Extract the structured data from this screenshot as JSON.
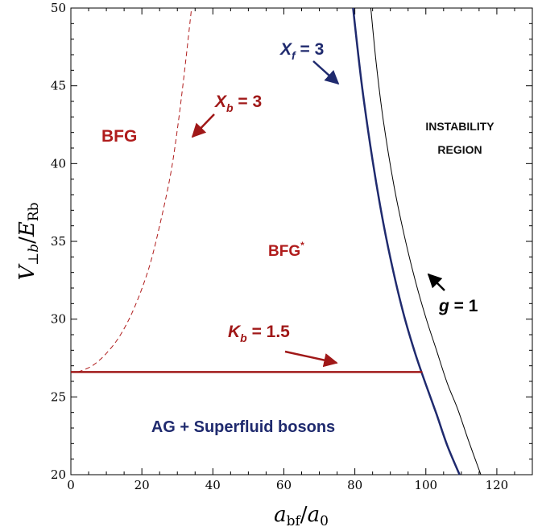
{
  "chart_data": {
    "type": "line",
    "xlabel": "a_bf/a_0",
    "ylabel": "V_⊥b/E_Rb",
    "xlim": [
      0,
      130
    ],
    "ylim": [
      20,
      50
    ],
    "x_ticks": [
      0,
      20,
      40,
      60,
      80,
      100,
      120
    ],
    "y_ticks": [
      20,
      25,
      30,
      35,
      40,
      45,
      50
    ],
    "grid": false,
    "series": [
      {
        "name": "X_f = 3",
        "color": "#1f2a6e",
        "style": "solid-thick",
        "x": [
          79.5,
          82,
          85,
          88,
          91,
          94,
          97,
          100,
          103,
          106,
          109.5
        ],
        "y": [
          50,
          45,
          40.2,
          36.2,
          32.9,
          30.1,
          27.8,
          25.8,
          23.9,
          21.9,
          20
        ]
      },
      {
        "name": "g = 1",
        "color": "#000000",
        "style": "solid-thin",
        "x": [
          84.5,
          86,
          88,
          91,
          94,
          97,
          100,
          103,
          106,
          109,
          112,
          115.5
        ],
        "y": [
          50,
          46.5,
          42.8,
          38.6,
          35.3,
          32.5,
          30.1,
          28,
          25.9,
          24.2,
          22.2,
          20
        ]
      },
      {
        "name": "X_b = 3",
        "color": "#b01c1c",
        "style": "dashed",
        "x": [
          2,
          6,
          10,
          14,
          18,
          22,
          25,
          28,
          30,
          32,
          34
        ],
        "y": [
          26.6,
          27,
          27.8,
          29,
          30.8,
          33.3,
          36,
          39.2,
          42.2,
          45.9,
          50
        ]
      },
      {
        "name": "K_b = 1.5",
        "color": "#a01818",
        "style": "solid-thick",
        "x": [
          0,
          99
        ],
        "y": [
          26.6,
          26.6
        ]
      }
    ],
    "annotations": {
      "xf": {
        "text": "X",
        "sub": "f",
        "rest": " = 3"
      },
      "xb": {
        "text": "X",
        "sub": "b",
        "rest": " = 3"
      },
      "kb": {
        "text": "K",
        "sub": "b",
        "rest": " = 1.5"
      },
      "g": {
        "text": "g",
        "rest": " = 1"
      },
      "bfg": "BFG",
      "bfg_star": "BFG",
      "bfg_star_sup": "*",
      "instability_1": "INSTABILITY",
      "instability_2": "REGION",
      "ag": "AG + Superfluid bosons"
    },
    "colors": {
      "navy": "#1f2a6e",
      "darkred": "#a01818",
      "red": "#b01c1c"
    }
  }
}
